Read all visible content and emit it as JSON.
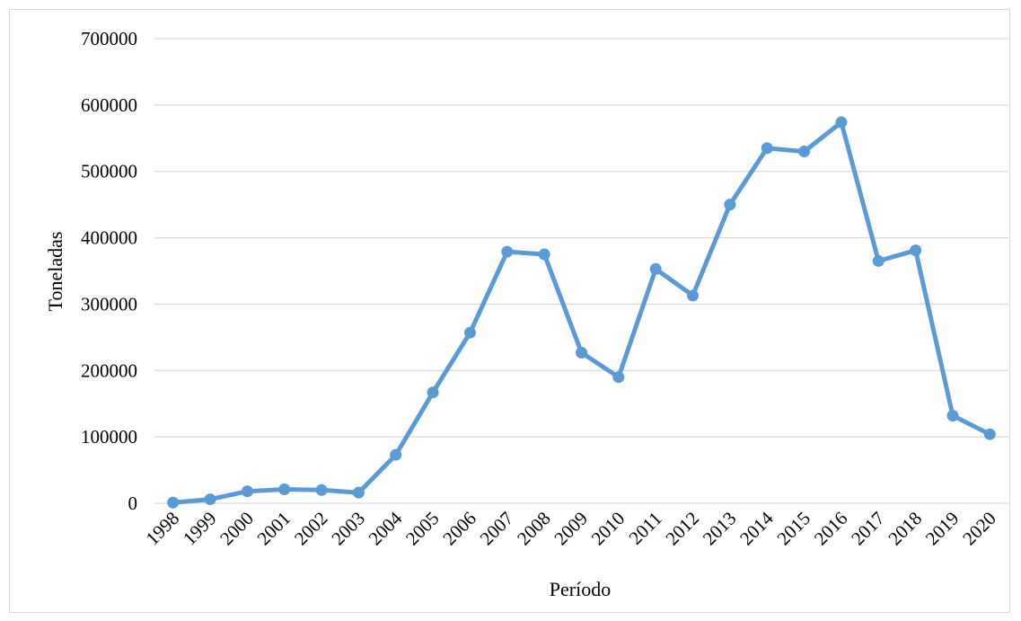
{
  "chart_data": {
    "type": "line",
    "title": "",
    "xlabel": "Período",
    "ylabel": "Toneladas",
    "ylim": [
      0,
      700000
    ],
    "yticks": [
      0,
      100000,
      200000,
      300000,
      400000,
      500000,
      600000,
      700000
    ],
    "grid": true,
    "legend": "none",
    "series_color": "#5b9bd5",
    "grid_color": "#d9d9d9",
    "categories": [
      "1998",
      "1999",
      "2000",
      "2001",
      "2002",
      "2003",
      "2004",
      "2005",
      "2006",
      "2007",
      "2008",
      "2009",
      "2010",
      "2011",
      "2012",
      "2013",
      "2014",
      "2015",
      "2016",
      "2017",
      "2018",
      "2019",
      "2020"
    ],
    "values": [
      1000,
      6000,
      18000,
      21000,
      20000,
      16000,
      73000,
      167000,
      257000,
      379000,
      375000,
      227000,
      190000,
      353000,
      313000,
      450000,
      535000,
      530000,
      574000,
      365000,
      381000,
      132000,
      104000
    ]
  }
}
